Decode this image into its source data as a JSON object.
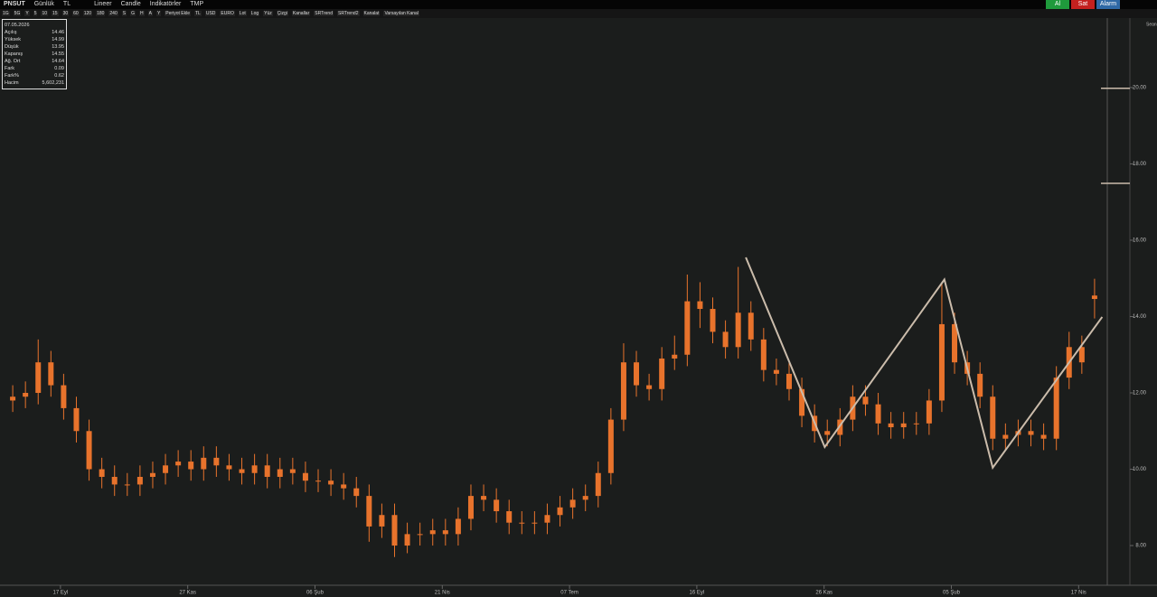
{
  "toolbar": {
    "symbol": "PNSUT",
    "period": "Günlük",
    "currency": "TL",
    "scale": "Lineer",
    "style": "Candle",
    "indicators": "İndikatörler",
    "template": "TMP",
    "buttons": [
      "Al",
      "Sat",
      "Alarm"
    ],
    "tools": [
      "1G",
      "5G",
      "Y",
      "5",
      "10",
      "15",
      "30",
      "60",
      "120",
      "180",
      "240",
      "S",
      "G",
      "H",
      "A",
      "Y",
      "Periyot Ekle",
      "TL",
      "USD",
      "EURO",
      "Lot",
      "Log",
      "Yüz",
      "Çizgi",
      "Kanallar",
      "SRTrend",
      "SRTrend2",
      "Kanalat",
      "Varsayılan Kanal"
    ],
    "session": "Sean"
  },
  "info": {
    "date": "07.05.2026",
    "rows": [
      [
        "Açılış",
        "14.46"
      ],
      [
        "Yüksek",
        "14.99"
      ],
      [
        "Düşük",
        "13.95"
      ],
      [
        "Kapanış",
        "14.55"
      ],
      [
        "Ağ. Ort",
        "14.64"
      ],
      [
        "Fark",
        "0.09"
      ],
      [
        "Fark%",
        "0.62"
      ],
      [
        "Hacim",
        "5,602,231"
      ]
    ]
  },
  "chart_data": {
    "type": "candlestick",
    "color": "#e8732c",
    "x": [
      1,
      2,
      3,
      4,
      5,
      6,
      7,
      8,
      9,
      10,
      11,
      12,
      13,
      14,
      15,
      16,
      17,
      18,
      19,
      20,
      21,
      22,
      23,
      24,
      25,
      26,
      27,
      28,
      29,
      30,
      31,
      32,
      33,
      34,
      35,
      36,
      37,
      38,
      39,
      40,
      41,
      42,
      43,
      44,
      45,
      46,
      47,
      48,
      49,
      50,
      51,
      52,
      53,
      54,
      55,
      56,
      57,
      58,
      59,
      60,
      61,
      62,
      63,
      64,
      65,
      66,
      67,
      68,
      69,
      70,
      71,
      72,
      73,
      74,
      75,
      76,
      77,
      78,
      79,
      80,
      81,
      82,
      83,
      84,
      85,
      86
    ],
    "open": [
      11.8,
      11.9,
      12.0,
      12.8,
      12.2,
      11.6,
      11.0,
      10.0,
      9.8,
      9.6,
      9.6,
      9.8,
      9.9,
      10.1,
      10.2,
      10.0,
      10.3,
      10.1,
      10.0,
      9.9,
      10.1,
      9.8,
      10.0,
      9.9,
      9.7,
      9.7,
      9.6,
      9.5,
      9.3,
      8.5,
      8.8,
      8.0,
      8.3,
      8.3,
      8.4,
      8.3,
      8.7,
      9.3,
      9.2,
      8.9,
      8.6,
      8.6,
      8.6,
      8.8,
      9.0,
      9.2,
      9.3,
      9.9,
      11.3,
      12.8,
      12.2,
      12.1,
      12.9,
      13.0,
      14.4,
      14.2,
      13.6,
      13.2,
      14.1,
      13.4,
      12.6,
      12.5,
      12.1,
      11.4,
      11.0,
      10.9,
      11.3,
      11.9,
      11.7,
      11.2,
      11.1,
      11.2,
      11.2,
      11.8,
      13.8,
      12.8,
      12.5,
      11.9,
      10.8,
      10.9,
      11.0,
      10.9,
      10.8,
      12.4,
      13.2,
      14.46
    ],
    "high": [
      12.2,
      12.3,
      13.4,
      13.1,
      12.5,
      11.9,
      11.3,
      10.3,
      10.1,
      9.9,
      10.1,
      10.2,
      10.4,
      10.5,
      10.5,
      10.6,
      10.6,
      10.4,
      10.3,
      10.4,
      10.4,
      10.3,
      10.3,
      10.2,
      10.0,
      10.0,
      9.9,
      9.8,
      9.6,
      9.1,
      9.1,
      8.6,
      8.6,
      8.7,
      8.7,
      9.0,
      9.6,
      9.6,
      9.5,
      9.2,
      8.9,
      8.9,
      9.1,
      9.3,
      9.5,
      9.6,
      10.2,
      11.6,
      13.3,
      13.1,
      12.5,
      13.2,
      13.5,
      15.1,
      14.9,
      14.5,
      13.9,
      15.3,
      14.4,
      13.7,
      12.9,
      12.8,
      12.4,
      11.7,
      11.3,
      11.6,
      12.2,
      12.2,
      12.0,
      11.5,
      11.5,
      11.5,
      12.1,
      14.9,
      14.1,
      13.1,
      12.8,
      12.2,
      11.2,
      11.3,
      11.3,
      11.2,
      12.7,
      13.6,
      13.5,
      14.99
    ],
    "low": [
      11.5,
      11.6,
      11.7,
      11.9,
      11.3,
      10.7,
      9.7,
      9.5,
      9.3,
      9.3,
      9.3,
      9.5,
      9.6,
      9.8,
      9.7,
      9.7,
      9.8,
      9.7,
      9.6,
      9.6,
      9.5,
      9.5,
      9.6,
      9.4,
      9.4,
      9.3,
      9.2,
      9.0,
      8.1,
      8.2,
      7.7,
      7.8,
      8.0,
      8.0,
      8.0,
      8.0,
      8.4,
      8.9,
      8.6,
      8.3,
      8.3,
      8.3,
      8.3,
      8.5,
      8.7,
      8.9,
      9.0,
      9.6,
      11.0,
      11.9,
      11.8,
      11.8,
      12.6,
      12.7,
      13.7,
      13.3,
      12.9,
      12.9,
      13.1,
      12.3,
      12.2,
      11.8,
      11.1,
      10.7,
      10.6,
      10.6,
      11.0,
      11.4,
      10.9,
      10.8,
      10.8,
      10.9,
      10.9,
      11.5,
      12.5,
      12.2,
      11.6,
      10.5,
      10.5,
      10.6,
      10.6,
      10.5,
      10.5,
      12.1,
      12.5,
      13.95
    ],
    "close": [
      11.9,
      12.0,
      12.8,
      12.2,
      11.6,
      11.0,
      10.0,
      9.8,
      9.6,
      9.6,
      9.8,
      9.9,
      10.1,
      10.2,
      10.0,
      10.3,
      10.1,
      10.0,
      9.9,
      10.1,
      9.8,
      10.0,
      9.9,
      9.7,
      9.7,
      9.6,
      9.5,
      9.3,
      8.5,
      8.8,
      8.0,
      8.3,
      8.3,
      8.4,
      8.3,
      8.7,
      9.3,
      9.2,
      8.9,
      8.6,
      8.6,
      8.6,
      8.8,
      9.0,
      9.2,
      9.3,
      9.9,
      11.3,
      12.8,
      12.2,
      12.1,
      12.9,
      13.0,
      14.4,
      14.2,
      13.6,
      13.2,
      14.1,
      13.4,
      12.6,
      12.5,
      12.1,
      11.4,
      11.0,
      10.9,
      11.3,
      11.9,
      11.7,
      11.2,
      11.1,
      11.2,
      11.2,
      11.8,
      13.8,
      12.8,
      12.5,
      11.9,
      10.8,
      10.9,
      11.0,
      10.9,
      10.8,
      12.4,
      13.2,
      12.8,
      14.55
    ],
    "xlim": [
      0,
      87
    ],
    "ylim": [
      6.96,
      21.82
    ],
    "xticks": [
      {
        "value": 4.75,
        "label": "17 Eyl"
      },
      {
        "value": 14.75,
        "label": "27 Kas"
      },
      {
        "value": 24.75,
        "label": "06 Şub"
      },
      {
        "value": 34.75,
        "label": "21 Nis"
      },
      {
        "value": 44.75,
        "label": "07 Tem"
      },
      {
        "value": 54.75,
        "label": "16 Eyl"
      },
      {
        "value": 64.75,
        "label": "26 Kas"
      },
      {
        "value": 74.75,
        "label": "05 Şub"
      },
      {
        "value": 84.75,
        "label": "17 Nis"
      }
    ],
    "yticks": [
      {
        "value": 8,
        "label": "8.00"
      },
      {
        "value": 10,
        "label": "10.00"
      },
      {
        "value": 12,
        "label": "12.00"
      },
      {
        "value": 14,
        "label": "14.00"
      },
      {
        "value": 16,
        "label": "16.00"
      },
      {
        "value": 18,
        "label": "18.00"
      },
      {
        "value": 20,
        "label": "20.00"
      }
    ],
    "drawing": {
      "color": "#cbbcab",
      "x": [
        58.6,
        64.8,
        74.2,
        78.0,
        86.6
      ],
      "y": [
        15.55,
        10.58,
        14.97,
        10.04,
        13.99
      ]
    },
    "levels": [
      19.98,
      17.49
    ]
  }
}
